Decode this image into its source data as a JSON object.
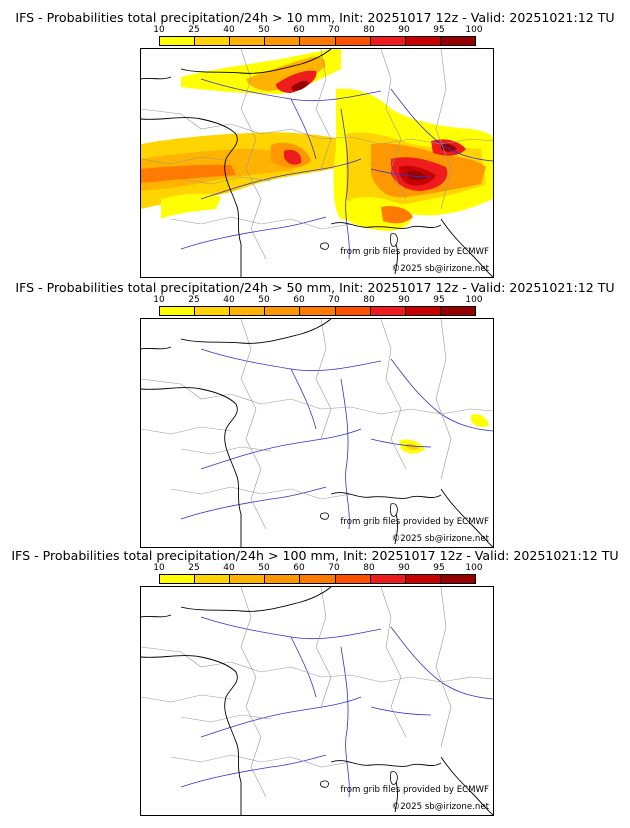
{
  "panels": [
    {
      "title": "IFS - Probabilities total precipitation/24h > 10 mm, Init: 20251017 12z - Valid: 20251021:12 TU",
      "threshold_mm": 10,
      "source_credit": "from grib files provided by ECMWF",
      "copyright": "©2025 sb@irizone.net"
    },
    {
      "title": "IFS - Probabilities total precipitation/24h > 50 mm, Init: 20251017 12z - Valid: 20251021:12 TU",
      "threshold_mm": 50,
      "source_credit": "from grib files provided by ECMWF",
      "copyright": "©2025 sb@irizone.net"
    },
    {
      "title": "IFS - Probabilities total precipitation/24h > 100 mm, Init: 20251017 12z - Valid: 20251021:12 TU",
      "threshold_mm": 100,
      "source_credit": "from grib files provided by ECMWF",
      "copyright": "©2025 sb@irizone.net"
    }
  ],
  "colorbar": {
    "ticks": [
      "10",
      "25",
      "40",
      "50",
      "60",
      "70",
      "80",
      "90",
      "95",
      "100"
    ],
    "colors": [
      "#ffff00",
      "#ffd400",
      "#ffb300",
      "#ff9800",
      "#ff7a00",
      "#ff5000",
      "#ee1c1c",
      "#c80000",
      "#960000"
    ]
  },
  "map_colors": {
    "rivers": "#3333cc",
    "borders": "#999999",
    "coast": "#000000"
  }
}
